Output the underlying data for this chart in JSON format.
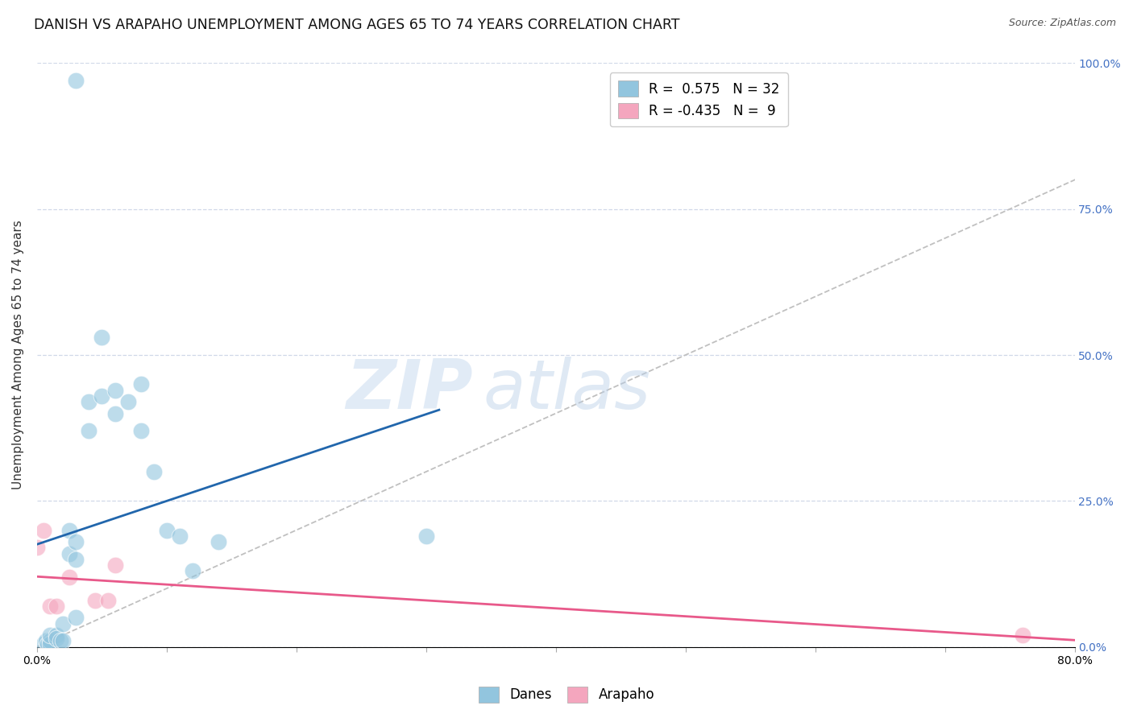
{
  "title": "DANISH VS ARAPAHO UNEMPLOYMENT AMONG AGES 65 TO 74 YEARS CORRELATION CHART",
  "source": "Source: ZipAtlas.com",
  "ylabel": "Unemployment Among Ages 65 to 74 years",
  "xlim": [
    0.0,
    0.8
  ],
  "ylim": [
    0.0,
    1.0
  ],
  "xticks": [
    0.0,
    0.1,
    0.2,
    0.3,
    0.4,
    0.5,
    0.6,
    0.7,
    0.8
  ],
  "yticks_right": [
    0.0,
    0.25,
    0.5,
    0.75,
    1.0
  ],
  "ytick_right_labels": [
    "0.0%",
    "25.0%",
    "50.0%",
    "75.0%",
    "100.0%"
  ],
  "danes_x": [
    0.005,
    0.007,
    0.008,
    0.01,
    0.01,
    0.01,
    0.015,
    0.015,
    0.018,
    0.02,
    0.02,
    0.025,
    0.025,
    0.03,
    0.03,
    0.03,
    0.04,
    0.04,
    0.05,
    0.05,
    0.06,
    0.06,
    0.07,
    0.08,
    0.08,
    0.09,
    0.1,
    0.11,
    0.12,
    0.14,
    0.3,
    0.03
  ],
  "danes_y": [
    0.005,
    0.01,
    0.005,
    0.01,
    0.005,
    0.02,
    0.02,
    0.015,
    0.01,
    0.04,
    0.01,
    0.16,
    0.2,
    0.18,
    0.05,
    0.15,
    0.37,
    0.42,
    0.43,
    0.53,
    0.4,
    0.44,
    0.42,
    0.45,
    0.37,
    0.3,
    0.2,
    0.19,
    0.13,
    0.18,
    0.19,
    0.97
  ],
  "arapaho_x": [
    0.0,
    0.005,
    0.01,
    0.015,
    0.025,
    0.045,
    0.055,
    0.06,
    0.76
  ],
  "arapaho_y": [
    0.17,
    0.2,
    0.07,
    0.07,
    0.12,
    0.08,
    0.08,
    0.14,
    0.02
  ],
  "danes_color": "#92c5de",
  "arapaho_color": "#f4a6be",
  "danes_line_color": "#2166ac",
  "arapaho_line_color": "#e8598a",
  "danes_R": 0.575,
  "danes_N": 32,
  "arapaho_R": -0.435,
  "arapaho_N": 9,
  "reference_line_color": "#c0c0c0",
  "watermark_zip": "ZIP",
  "watermark_atlas": "atlas",
  "background_color": "#ffffff",
  "grid_color": "#d0d8e8",
  "title_fontsize": 12.5,
  "axis_label_fontsize": 11,
  "tick_label_fontsize": 10,
  "legend_fontsize": 12,
  "right_tick_color": "#4472c4"
}
